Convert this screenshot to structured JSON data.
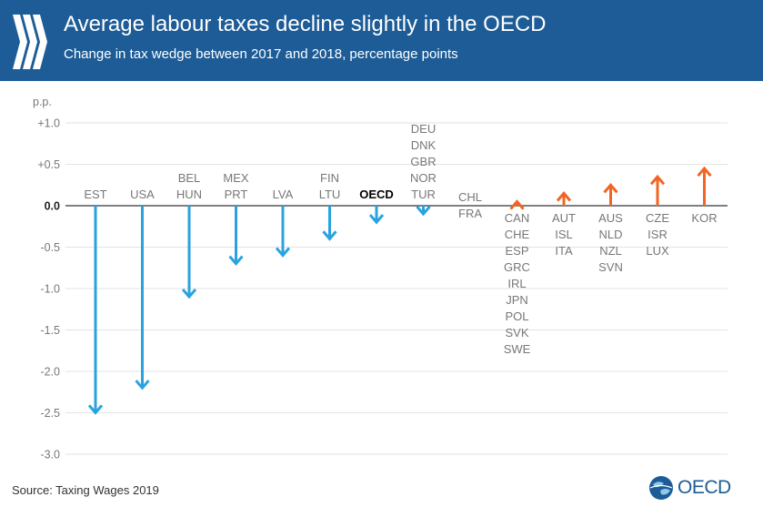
{
  "header": {
    "title": "Average labour taxes decline slightly in the OECD",
    "subtitle": "Change in tax wedge between 2017 and 2018, percentage points"
  },
  "footer": {
    "source": "Source: Taxing Wages 2019",
    "logo_text": "OECD"
  },
  "colors": {
    "header_bg": "#1d5c96",
    "decrease": "#29a3e0",
    "increase": "#f26522",
    "label": "#777777",
    "highlight": "#000000"
  },
  "chart_data": {
    "type": "bar",
    "style": "arrow",
    "unit_label": "p.p.",
    "ylim": [
      -3.0,
      1.0
    ],
    "yticks": [
      1.0,
      0.5,
      0.0,
      -0.5,
      -1.0,
      -1.5,
      -2.0,
      -2.5,
      -3.0
    ],
    "ytick_labels": [
      "+1.0",
      "+0.5",
      "0.0",
      "-0.5",
      "-1.0",
      "-1.5",
      "-2.0",
      "-2.5",
      "-3.0"
    ],
    "gridlines": true,
    "categories": [
      {
        "countries": [
          "EST"
        ],
        "value": -2.5,
        "highlight": false
      },
      {
        "countries": [
          "USA"
        ],
        "value": -2.2,
        "highlight": false
      },
      {
        "countries": [
          "BEL",
          "HUN"
        ],
        "value": -1.1,
        "highlight": false
      },
      {
        "countries": [
          "MEX",
          "PRT"
        ],
        "value": -0.7,
        "highlight": false
      },
      {
        "countries": [
          "LVA"
        ],
        "value": -0.6,
        "highlight": false
      },
      {
        "countries": [
          "FIN",
          "LTU"
        ],
        "value": -0.4,
        "highlight": false
      },
      {
        "countries": [
          "OECD"
        ],
        "value": -0.2,
        "highlight": true
      },
      {
        "countries": [
          "DEU",
          "DNK",
          "GBR",
          "NOR",
          "TUR"
        ],
        "value": -0.1,
        "highlight": false
      },
      {
        "countries": [
          "CHL",
          "FRA"
        ],
        "value": 0.0,
        "highlight": false
      },
      {
        "countries": [
          "CAN",
          "CHE",
          "ESP",
          "GRC",
          "IRL",
          "JPN",
          "POL",
          "SVK",
          "SWE"
        ],
        "value": 0.05,
        "highlight": false
      },
      {
        "countries": [
          "AUT",
          "ISL",
          "ITA"
        ],
        "value": 0.15,
        "highlight": false
      },
      {
        "countries": [
          "AUS",
          "NLD",
          "NZL",
          "SVN"
        ],
        "value": 0.25,
        "highlight": false
      },
      {
        "countries": [
          "CZE",
          "ISR",
          "LUX"
        ],
        "value": 0.35,
        "highlight": false
      },
      {
        "countries": [
          "KOR"
        ],
        "value": 0.45,
        "highlight": false
      }
    ]
  }
}
